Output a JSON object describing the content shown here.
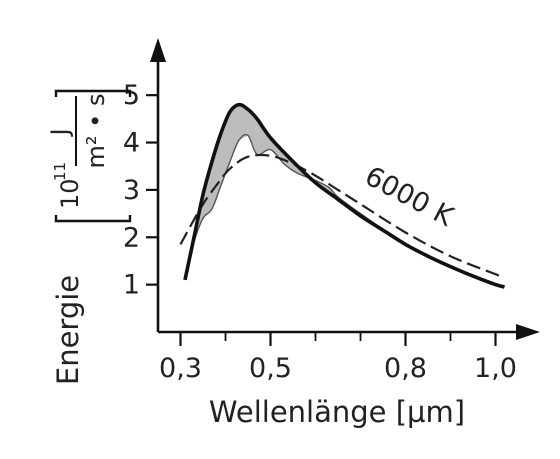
{
  "chart_data": {
    "type": "line",
    "xlabel": "Wellenlänge [µm]",
    "ylabel": {
      "prefix": "Energie",
      "factor": "10",
      "exponent": "11",
      "numerator": "J",
      "denominator": "m² • s"
    },
    "xlim": [
      0.25,
      1.05
    ],
    "ylim": [
      0,
      5.7
    ],
    "x_ticks": [
      {
        "value": 0.3,
        "label": "0,3"
      },
      {
        "value": 0.5,
        "label": "0,5"
      },
      {
        "value": 0.8,
        "label": "0,8"
      },
      {
        "value": 1.0,
        "label": "1,0"
      }
    ],
    "x_minor_ticks": [
      0.4,
      0.6,
      0.7,
      0.9
    ],
    "y_ticks": [
      {
        "value": 1,
        "label": "1"
      },
      {
        "value": 2,
        "label": "2"
      },
      {
        "value": 3,
        "label": "3"
      },
      {
        "value": 4,
        "label": "4"
      },
      {
        "value": 5,
        "label": "5"
      }
    ],
    "annotation": "6000 K",
    "grid": false,
    "series": [
      {
        "style": "solid",
        "x": [
          0.31,
          0.33,
          0.35,
          0.37,
          0.39,
          0.41,
          0.43,
          0.45,
          0.47,
          0.5,
          0.55,
          0.6,
          0.65,
          0.7,
          0.75,
          0.8,
          0.85,
          0.9,
          0.95,
          1.0,
          1.02
        ],
        "y": [
          1.1,
          2.0,
          2.9,
          3.6,
          4.2,
          4.65,
          4.8,
          4.7,
          4.5,
          4.1,
          3.6,
          3.15,
          2.8,
          2.45,
          2.15,
          1.85,
          1.6,
          1.38,
          1.18,
          1.0,
          0.95
        ]
      },
      {
        "style": "dashed",
        "x": [
          0.3,
          0.32,
          0.35,
          0.38,
          0.41,
          0.45,
          0.5,
          0.55,
          0.6,
          0.65,
          0.7,
          0.8,
          0.9,
          1.0,
          1.02
        ],
        "y": [
          1.85,
          2.2,
          2.7,
          3.1,
          3.45,
          3.7,
          3.72,
          3.55,
          3.3,
          3.0,
          2.7,
          2.1,
          1.6,
          1.22,
          1.15
        ]
      },
      {
        "style": "thin",
        "x": [
          0.31,
          0.33,
          0.35,
          0.37,
          0.39,
          0.41,
          0.43,
          0.45,
          0.47,
          0.5,
          0.53,
          0.56,
          0.6,
          0.63,
          0.65,
          0.7,
          0.8,
          0.9,
          1.0,
          1.02
        ],
        "y": [
          1.1,
          1.9,
          2.4,
          2.6,
          3.1,
          3.6,
          4.05,
          4.15,
          3.75,
          3.85,
          3.55,
          3.35,
          3.2,
          3.05,
          2.85,
          2.5,
          1.85,
          1.38,
          1.0,
          0.95
        ]
      }
    ]
  }
}
